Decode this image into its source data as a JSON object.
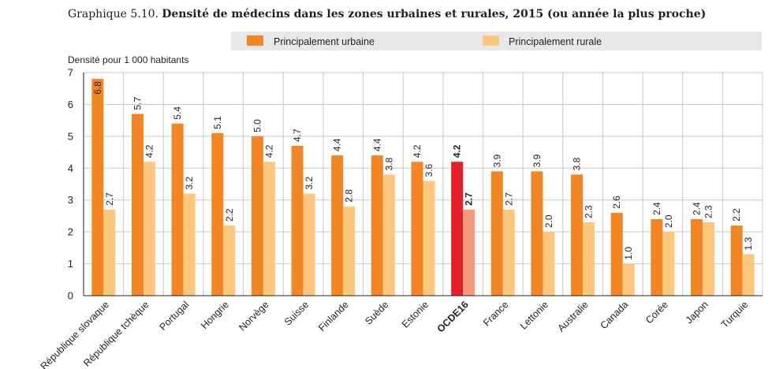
{
  "title": {
    "prefix": "Graphique 5.10.",
    "main": "Densité de médecins dans les zones urbaines et rurales, 2015 (ou année la plus proche)"
  },
  "chart_data": {
    "type": "bar",
    "ylabel": "Densité pour 1 000 habitants",
    "ylim": [
      0,
      7
    ],
    "yticks": [
      "0",
      "1",
      "2",
      "3",
      "4",
      "5",
      "6",
      "7"
    ],
    "grid": true,
    "legend_position": "top",
    "categories": [
      "République slovaque",
      "République tchèque",
      "Portugal",
      "Hongrie",
      "Norvège",
      "Suisse",
      "Finlande",
      "Suède",
      "Estonie",
      "OCDE16",
      "France",
      "Lettonie",
      "Australie",
      "Canada",
      "Corée",
      "Japon",
      "Turquie"
    ],
    "highlight_category": "OCDE16",
    "series": [
      {
        "name": "Principalement urbaine",
        "values": [
          6.8,
          5.7,
          5.4,
          5.1,
          5.0,
          4.7,
          4.4,
          4.4,
          4.2,
          4.2,
          3.9,
          3.9,
          3.8,
          2.6,
          2.4,
          2.4,
          2.2
        ],
        "labels": [
          "6.8",
          "5.7",
          "5.4",
          "5.1",
          "5.0",
          "4.7",
          "4.4",
          "4.4",
          "4.2",
          "4.2",
          "3.9",
          "3.9",
          "3.8",
          "2.6",
          "2.4",
          "2.4",
          "2.2"
        ]
      },
      {
        "name": "Principalement rurale",
        "values": [
          2.7,
          4.2,
          3.2,
          2.2,
          4.2,
          3.2,
          2.8,
          3.8,
          3.6,
          2.7,
          2.7,
          2.0,
          2.3,
          1.0,
          2.0,
          2.3,
          1.3
        ],
        "labels": [
          "2.7",
          "4.2",
          "3.2",
          "2.2",
          "4.2",
          "3.2",
          "2.8",
          "3.8",
          "3.6",
          "2.7",
          "2.7",
          "2.0",
          "2.3",
          "1.0",
          "2.0",
          "2.3",
          "1.3"
        ]
      }
    ],
    "colors": {
      "urban": "#f28524",
      "rural": "#fdc77d",
      "urban_highlight": "#e3202a",
      "rural_highlight": "#f4987a",
      "grid": "#c7c8ca",
      "legend_band": "#e7e8e9"
    }
  }
}
